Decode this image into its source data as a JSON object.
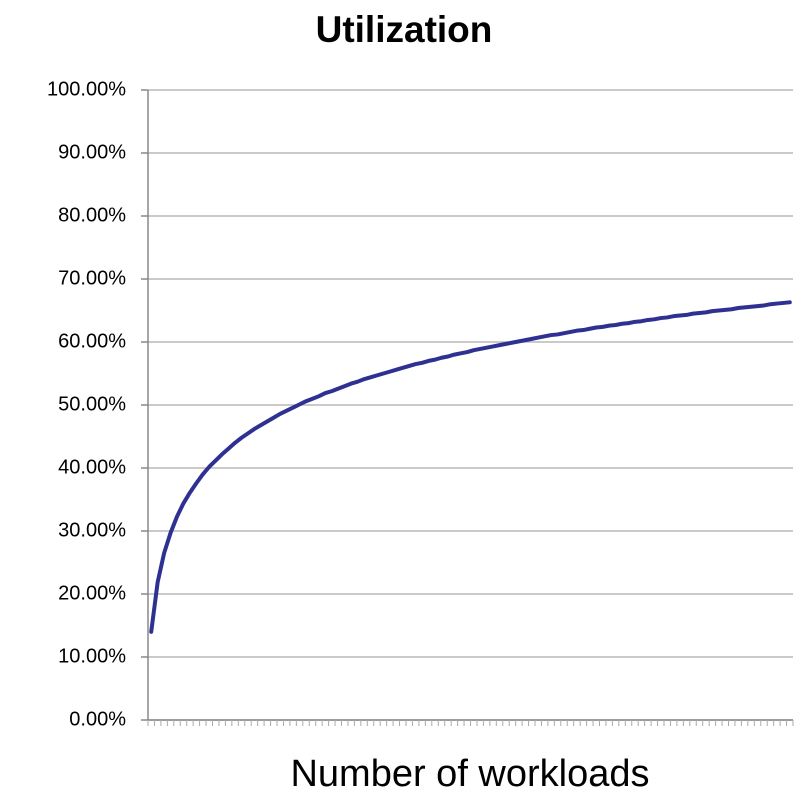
{
  "chart_data": {
    "type": "line",
    "title": "Utilization",
    "x_label": "Number of workloads",
    "categories": [
      null,
      null,
      null,
      null,
      null,
      null,
      null,
      null,
      null,
      null,
      null,
      null,
      null,
      null,
      null,
      null,
      null,
      null,
      null,
      null,
      null,
      null,
      null,
      null,
      null,
      null,
      null,
      null,
      null,
      null,
      null,
      null,
      null,
      null,
      null,
      null,
      null,
      null,
      null,
      null,
      null,
      null,
      null,
      null,
      null,
      null,
      null,
      null,
      null,
      null,
      null,
      null,
      null,
      null,
      null,
      null,
      null,
      null,
      null,
      null,
      null,
      null,
      null,
      null,
      null,
      null,
      null,
      null,
      null,
      null,
      null,
      null,
      null,
      null,
      null,
      null,
      null,
      null,
      null,
      null,
      null,
      null,
      null,
      null,
      null,
      null,
      null,
      null,
      null,
      null,
      null,
      null,
      null,
      null,
      null,
      null,
      null,
      null,
      null,
      null
    ],
    "values": [
      14.0,
      21.9,
      26.5,
      29.7,
      32.3,
      34.4,
      36.1,
      37.6,
      39.0,
      40.2,
      41.2,
      42.2,
      43.1,
      44.0,
      44.8,
      45.5,
      46.2,
      46.8,
      47.4,
      48.0,
      48.6,
      49.1,
      49.6,
      50.1,
      50.6,
      51.0,
      51.4,
      51.9,
      52.2,
      52.6,
      53.0,
      53.4,
      53.7,
      54.1,
      54.4,
      54.7,
      55.0,
      55.3,
      55.6,
      55.9,
      56.2,
      56.5,
      56.7,
      57.0,
      57.2,
      57.5,
      57.7,
      58.0,
      58.2,
      58.4,
      58.7,
      58.9,
      59.1,
      59.3,
      59.5,
      59.7,
      59.9,
      60.1,
      60.3,
      60.5,
      60.7,
      60.9,
      61.1,
      61.2,
      61.4,
      61.6,
      61.8,
      61.9,
      62.1,
      62.3,
      62.4,
      62.6,
      62.7,
      62.9,
      63.0,
      63.2,
      63.3,
      63.5,
      63.6,
      63.8,
      63.9,
      64.1,
      64.2,
      64.3,
      64.5,
      64.6,
      64.7,
      64.9,
      65.0,
      65.1,
      65.2,
      65.4,
      65.5,
      65.6,
      65.7,
      65.8,
      66.0,
      66.1,
      66.2,
      66.3
    ],
    "color": "#2e3192",
    "ylim": [
      0,
      100
    ],
    "yticks": [
      {
        "value": 0,
        "label": "0.00%"
      },
      {
        "value": 10,
        "label": "10.00%"
      },
      {
        "value": 20,
        "label": "20.00%"
      },
      {
        "value": 30,
        "label": "30.00%"
      },
      {
        "value": 40,
        "label": "40.00%"
      },
      {
        "value": 50,
        "label": "50.00%"
      },
      {
        "value": 60,
        "label": "60.00%"
      },
      {
        "value": 70,
        "label": "70.00%"
      },
      {
        "value": 80,
        "label": "80.00%"
      },
      {
        "value": 90,
        "label": "90.00%"
      },
      {
        "value": 100,
        "label": "100.00%"
      }
    ],
    "grid": true
  }
}
